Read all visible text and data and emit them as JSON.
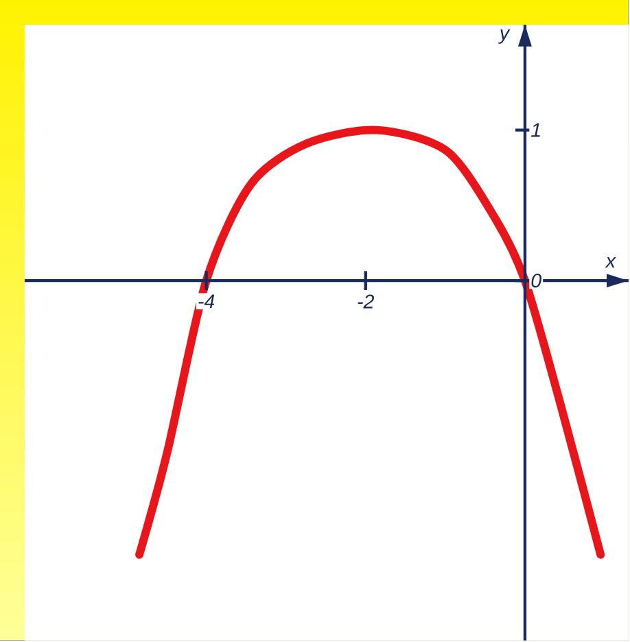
{
  "chart_data": {
    "type": "line",
    "xlabel": "x",
    "ylabel": "y",
    "x": [
      -4.84,
      -4.49,
      -4.0,
      -3.44,
      -2.74,
      -1.86,
      -0.98,
      -0.37,
      0.0,
      0.42,
      0.95
    ],
    "series": [
      {
        "color": "#e8161b",
        "values": [
          -1.82,
          -1.14,
          0.0,
          0.64,
          0.91,
          1.0,
          0.86,
          0.41,
          0.0,
          -0.77,
          -1.82
        ]
      }
    ],
    "xlim": [
      -6.28,
      1.3
    ],
    "ylim": [
      -2.39,
      1.7
    ],
    "xticks": [
      -4,
      -2
    ],
    "yticks": [
      0,
      1
    ],
    "line_style": "solid",
    "marker": "none"
  }
}
